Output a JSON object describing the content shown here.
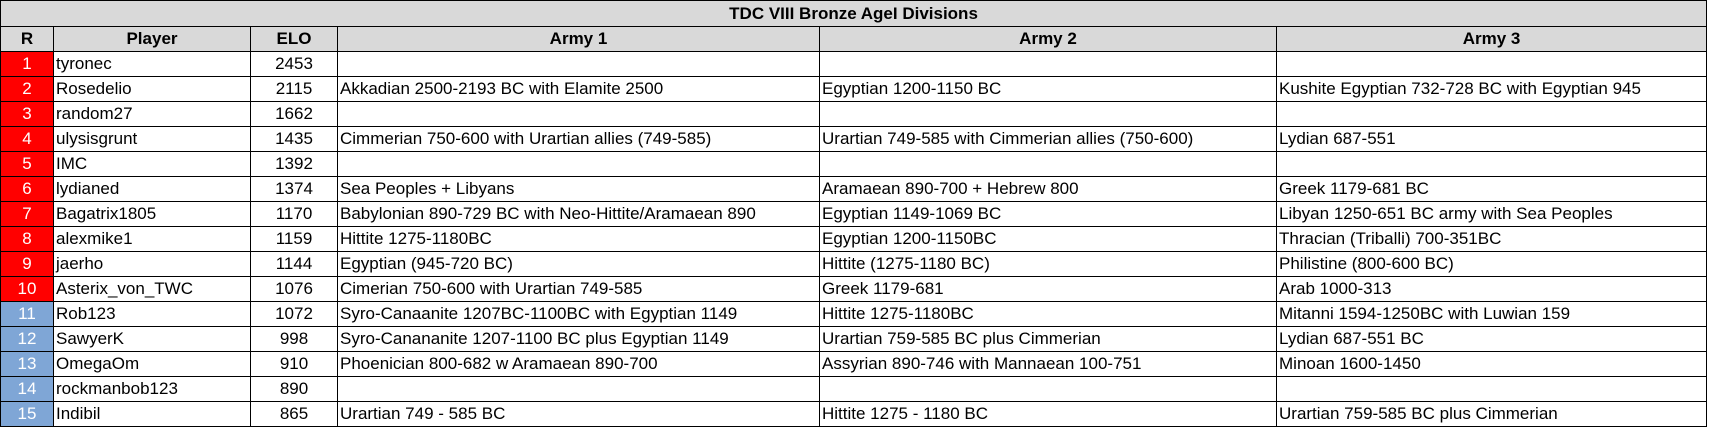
{
  "title": "TDC VIII Bronze AgeI Divisions",
  "colors": {
    "header_bg": "#d9d9d9",
    "top_rank": "#ff0000",
    "other_rank": "#7fa6d6"
  },
  "headers": {
    "rank": "R",
    "player": "Player",
    "elo": "ELO",
    "army1": "Army 1",
    "army2": "Army 2",
    "army3": "Army 3"
  },
  "rows": [
    {
      "rank": "1",
      "tier": "red",
      "player": "tyronec",
      "elo": "2453",
      "army1": "",
      "army2": "",
      "army3": ""
    },
    {
      "rank": "2",
      "tier": "red",
      "player": "Rosedelio",
      "elo": "2115",
      "army1": "Akkadian 2500-2193 BC with Elamite 2500",
      "army2": "Egyptian 1200-1150 BC",
      "army3": "Kushite Egyptian 732-728 BC with Egyptian 945"
    },
    {
      "rank": "3",
      "tier": "red",
      "player": "random27",
      "elo": "1662",
      "army1": "",
      "army2": "",
      "army3": ""
    },
    {
      "rank": "4",
      "tier": "red",
      "player": "ulysisgrunt",
      "elo": "1435",
      "army1": "Cimmerian 750-600 with Urartian allies (749-585)",
      "army2": "Urartian 749-585 with Cimmerian allies (750-600)",
      "army3": "Lydian 687-551"
    },
    {
      "rank": "5",
      "tier": "red",
      "player": "IMC",
      "elo": "1392",
      "army1": "",
      "army2": "",
      "army3": ""
    },
    {
      "rank": "6",
      "tier": "red",
      "player": "lydianed",
      "elo": "1374",
      "army1": "Sea Peoples + Libyans",
      "army2": "Aramaean 890-700 + Hebrew 800",
      "army3": "Greek 1179-681 BC"
    },
    {
      "rank": "7",
      "tier": "red",
      "player": "Bagatrix1805",
      "elo": "1170",
      "army1": "Babylonian 890-729 BC with Neo-Hittite/Aramaean 890",
      "army2": "Egyptian 1149-1069 BC",
      "army3": "Libyan 1250-651 BC army with Sea Peoples"
    },
    {
      "rank": "8",
      "tier": "red",
      "player": "alexmike1",
      "elo": "1159",
      "army1": "Hittite 1275-1180BC",
      "army2": "Egyptian 1200-1150BC",
      "army3": "Thracian (Triballi) 700-351BC"
    },
    {
      "rank": "9",
      "tier": "red",
      "player": "jaerho",
      "elo": "1144",
      "army1": "Egyptian (945-720 BC)",
      "army2": "Hittite (1275-1180 BC)",
      "army3": "Philistine (800-600 BC)"
    },
    {
      "rank": "10",
      "tier": "red",
      "player": "Asterix_von_TWC",
      "elo": "1076",
      "army1": "Cimerian 750-600 with Urartian 749-585",
      "army2": "Greek 1179-681",
      "army3": "Arab 1000-313"
    },
    {
      "rank": "11",
      "tier": "blue",
      "player": "Rob123",
      "elo": "1072",
      "army1": "Syro-Canaanite 1207BC-1100BC with Egyptian 1149",
      "army2": "Hittite 1275-1180BC",
      "army3": "Mitanni 1594-1250BC with Luwian 159"
    },
    {
      "rank": "12",
      "tier": "blue",
      "player": "SawyerK",
      "elo": "998",
      "army1": "Syro-Canananite 1207-1100 BC plus Egyptian 1149",
      "army2": "Urartian 759-585 BC plus Cimmerian",
      "army3": "Lydian 687-551 BC"
    },
    {
      "rank": "13",
      "tier": "blue",
      "player": "OmegaOm",
      "elo": "910",
      "army1": "Phoenician 800-682 w Aramaean 890-700",
      "army2": "Assyrian 890-746 with Mannaean 100-751",
      "army3": "Minoan 1600-1450"
    },
    {
      "rank": "14",
      "tier": "blue",
      "player": "rockmanbob123",
      "elo": "890",
      "army1": "",
      "army2": "",
      "army3": ""
    },
    {
      "rank": "15",
      "tier": "blue",
      "player": "Indibil",
      "elo": "865",
      "army1": "Urartian 749 - 585 BC",
      "army2": "Hittite 1275 - 1180 BC",
      "army3": "Urartian 759-585 BC plus Cimmerian"
    }
  ]
}
